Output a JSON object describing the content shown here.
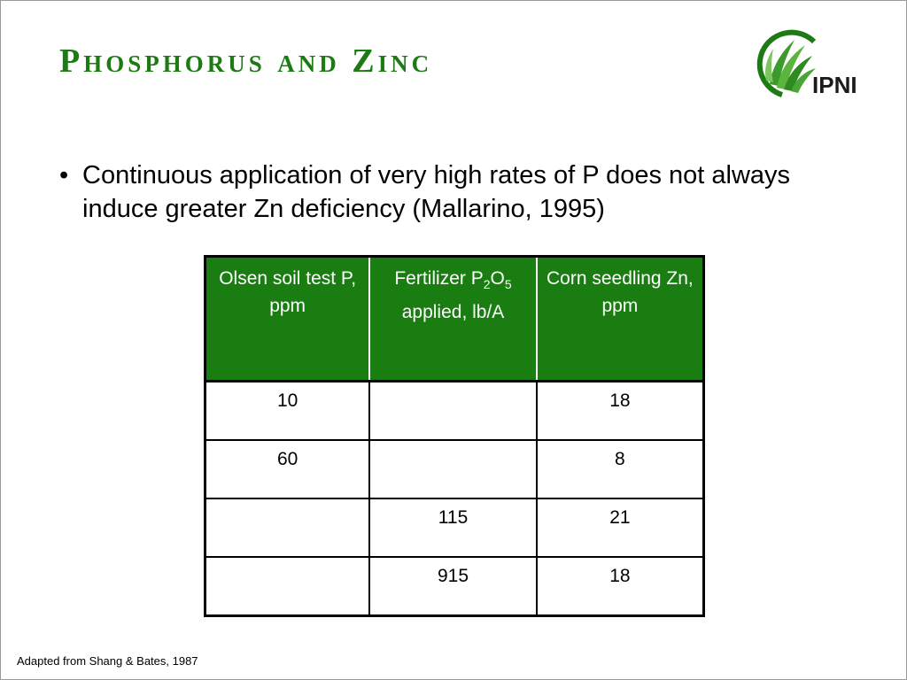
{
  "title": "Phosphorus and Zinc",
  "logo": {
    "text": "IPNI",
    "icon": "ipni-leaf-logo-icon",
    "brand_color": "#1e7a14"
  },
  "bullet": {
    "marker": "•",
    "text": "Continuous application of very high rates of P does not always induce greater Zn deficiency (Mallarino, 1995)"
  },
  "table": {
    "header_color": "#1a7d12",
    "headers": {
      "col1": "Olsen soil test P, ppm",
      "col2_prefix": "Fertilizer P",
      "col2_sub1": "2",
      "col2_mid": "O",
      "col2_sub2": "5",
      "col2_suffix": "applied, lb/A",
      "col3": "Corn seedling Zn, ppm"
    },
    "rows": [
      {
        "olsen": "10",
        "fert": "",
        "zn": "18"
      },
      {
        "olsen": "60",
        "fert": "",
        "zn": "8"
      },
      {
        "olsen": "",
        "fert": "115",
        "zn": "21"
      },
      {
        "olsen": "",
        "fert": "915",
        "zn": "18"
      }
    ]
  },
  "footnote": "Adapted from Shang & Bates, 1987"
}
